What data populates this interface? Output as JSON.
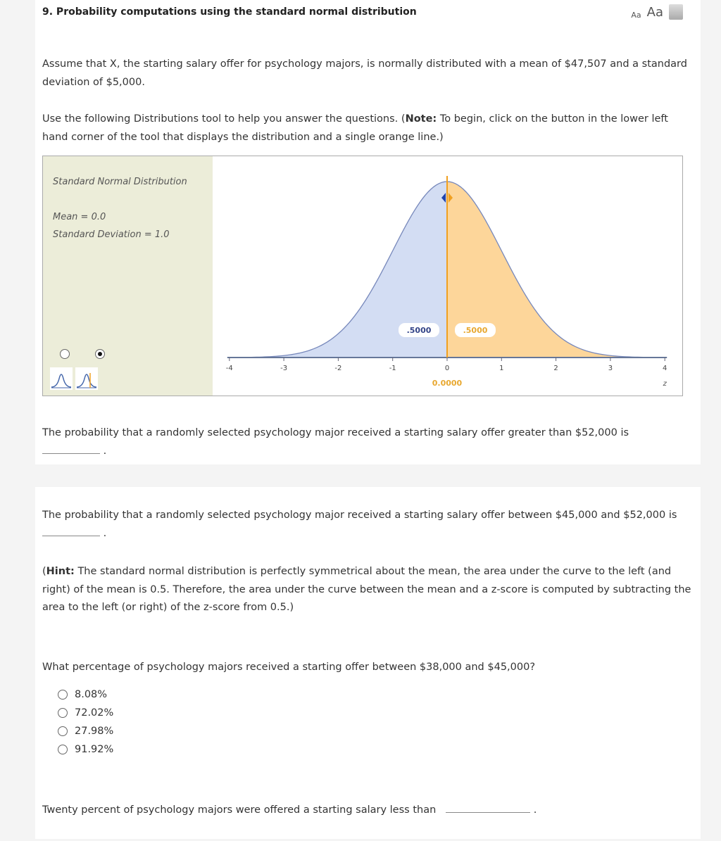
{
  "header": {
    "title": "9. Probability computations using the standard normal distribution",
    "font_small": "Aa",
    "font_large": "Aa",
    "print_icon": "printer-icon"
  },
  "intro": "Assume that X, the starting salary offer for psychology majors, is normally distributed with a mean of $47,507 and a standard deviation of $5,000.",
  "instructions": {
    "pre": "Use the following Distributions tool to help you answer the questions. (",
    "note": "Note:",
    "post": " To begin, click on the button in the lower left hand corner of the tool that displays the distribution and a single orange line.)"
  },
  "tool": {
    "title": "Standard Normal Distribution",
    "mean": "Mean = 0.0",
    "sd": "Standard Deviation = 1.0",
    "selected_mode": 2,
    "colors": {
      "left": "#d3ddf3",
      "right": "#fdd69a",
      "line": "#f0a020",
      "curve": "#7788bb"
    }
  },
  "chart_data": {
    "type": "area",
    "xlabel": "z",
    "xlim": [
      -4,
      4
    ],
    "ticks": [
      "-4",
      "-3",
      "-2",
      "-1",
      "0",
      "1",
      "2",
      "3",
      "4"
    ],
    "cutoff": 0,
    "cutoff_label": "0.0000",
    "left_area": ".5000",
    "right_area": ".5000",
    "mean": 0,
    "sd": 1
  },
  "q1": {
    "text": "The probability that a randomly selected psychology major received a starting salary offer greater than $52,000 is",
    "end": "."
  },
  "q2": {
    "text": "The probability that a randomly selected psychology major received a starting salary offer between $45,000 and $52,000 is",
    "end": "."
  },
  "hint": {
    "label": "Hint:",
    "text": " The standard normal distribution is perfectly symmetrical about the mean, the area under the curve to the left (and right) of the mean is 0.5. Therefore, the area under the curve between the mean and a z-score is computed by subtracting the area to the left (or right) of the z-score from 0.5.)"
  },
  "q3": {
    "text": "What percentage of psychology majors received a starting offer between $38,000 and $45,000?",
    "options": [
      "8.08%",
      "72.02%",
      "27.98%",
      "91.92%"
    ]
  },
  "q4": {
    "text": "Twenty percent of psychology majors were offered a starting salary less than",
    "end": "."
  }
}
